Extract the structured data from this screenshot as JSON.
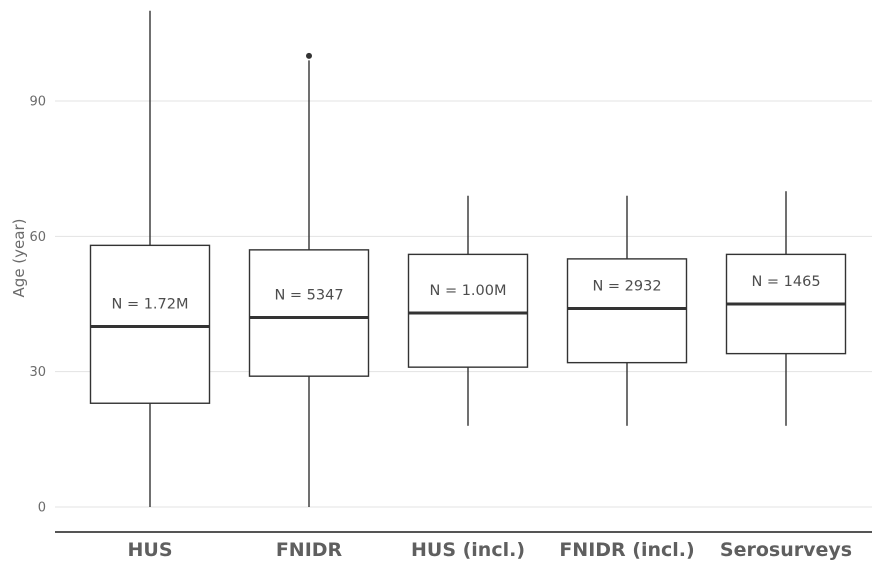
{
  "chart_data": {
    "type": "boxplot",
    "ylabel": "Age (year)",
    "yticks": [
      0,
      30,
      60,
      90
    ],
    "ylim": [
      -5.5,
      111
    ],
    "grid": true,
    "categories": [
      "HUS",
      "FNIDR",
      "HUS (incl.)",
      "FNIDR (incl.)",
      "Serosurveys"
    ],
    "boxes": [
      {
        "category": "HUS",
        "whisker_low": 0,
        "q1": 23,
        "median": 40,
        "q3": 58,
        "whisker_high": 110,
        "outliers": [],
        "n_label": "N = 1.72M",
        "n_label_y": 44
      },
      {
        "category": "FNIDR",
        "whisker_low": 0,
        "q1": 29,
        "median": 42,
        "q3": 57,
        "whisker_high": 99,
        "outliers": [
          100
        ],
        "n_label": "N = 5347",
        "n_label_y": 46
      },
      {
        "category": "HUS (incl.)",
        "whisker_low": 18,
        "q1": 31,
        "median": 43,
        "q3": 56,
        "whisker_high": 69,
        "outliers": [],
        "n_label": "N = 1.00M",
        "n_label_y": 47
      },
      {
        "category": "FNIDR (incl.)",
        "whisker_low": 18,
        "q1": 32,
        "median": 44,
        "q3": 55,
        "whisker_high": 69,
        "outliers": [],
        "n_label": "N = 2932",
        "n_label_y": 48
      },
      {
        "category": "Serosurveys",
        "whisker_low": 18,
        "q1": 34,
        "median": 45,
        "q3": 56,
        "whisker_high": 70,
        "outliers": [],
        "n_label": "N = 1465",
        "n_label_y": 49
      }
    ]
  }
}
